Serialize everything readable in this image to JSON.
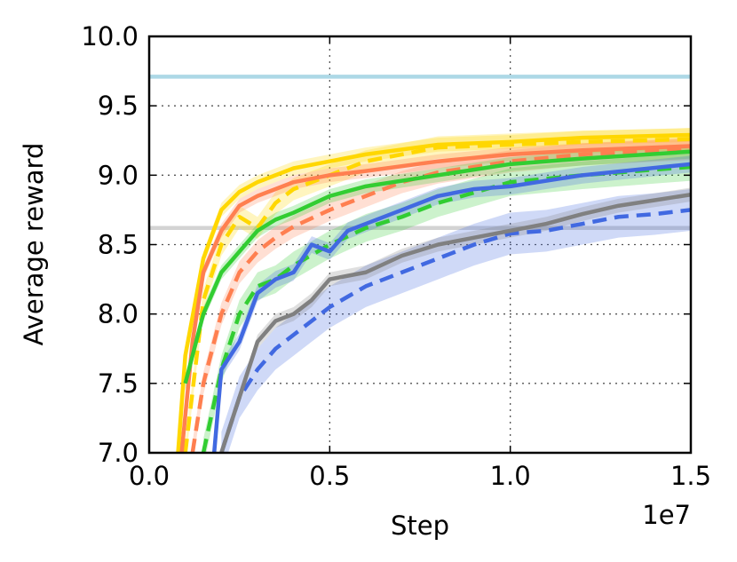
{
  "chart_data": {
    "type": "line",
    "title": "",
    "xlabel": "Step",
    "ylabel": "Average reward",
    "x_offset_label": "1e7",
    "xlim": [
      0.0,
      1.5
    ],
    "ylim": [
      7.0,
      10.0
    ],
    "x_ticks": [
      "0.0",
      "0.5",
      "1.0",
      "1.5"
    ],
    "y_ticks": [
      "7.0",
      "7.5",
      "8.0",
      "8.5",
      "9.0",
      "9.5",
      "10.0"
    ],
    "grid": true,
    "legend": "none",
    "reference_lines": [
      {
        "y": 9.71,
        "color": "#add8e6"
      },
      {
        "y": 8.62,
        "color": "#d3d3d3"
      }
    ],
    "series": [
      {
        "color": "#ffd700",
        "style": "solid",
        "x": [
          0.08,
          0.1,
          0.15,
          0.2,
          0.25,
          0.3,
          0.4,
          0.5,
          0.6,
          0.8,
          1.0,
          1.2,
          1.5
        ],
        "y": [
          7.0,
          7.7,
          8.4,
          8.75,
          8.88,
          8.95,
          9.05,
          9.1,
          9.15,
          9.22,
          9.24,
          9.27,
          9.29
        ],
        "band": 0.05
      },
      {
        "color": "#ffd700",
        "style": "dashed",
        "x": [
          0.1,
          0.15,
          0.2,
          0.25,
          0.3,
          0.35,
          0.4,
          0.5,
          0.6,
          0.8,
          1.0,
          1.2,
          1.5
        ],
        "y": [
          7.0,
          8.1,
          8.5,
          8.7,
          8.62,
          8.8,
          8.9,
          9.0,
          9.1,
          9.2,
          9.22,
          9.24,
          9.26
        ],
        "band": 0.08
      },
      {
        "color": "#ff7f50",
        "style": "solid",
        "x": [
          0.09,
          0.12,
          0.15,
          0.2,
          0.25,
          0.3,
          0.4,
          0.5,
          0.6,
          0.8,
          1.0,
          1.2,
          1.5
        ],
        "y": [
          7.0,
          7.8,
          8.3,
          8.6,
          8.78,
          8.85,
          8.95,
          9.0,
          9.03,
          9.1,
          9.15,
          9.18,
          9.21
        ],
        "band": 0.05
      },
      {
        "color": "#ff7f50",
        "style": "dashed",
        "x": [
          0.12,
          0.15,
          0.2,
          0.25,
          0.3,
          0.35,
          0.4,
          0.5,
          0.6,
          0.7,
          0.8,
          1.0,
          1.2,
          1.5
        ],
        "y": [
          7.0,
          7.5,
          8.0,
          8.3,
          8.45,
          8.55,
          8.63,
          8.75,
          8.85,
          8.95,
          9.02,
          9.1,
          9.15,
          9.19
        ],
        "band": 0.08
      },
      {
        "color": "#32cd32",
        "style": "solid",
        "x": [
          0.1,
          0.15,
          0.2,
          0.25,
          0.3,
          0.35,
          0.4,
          0.5,
          0.6,
          0.8,
          1.0,
          1.2,
          1.5
        ],
        "y": [
          7.5,
          8.0,
          8.3,
          8.45,
          8.6,
          8.68,
          8.73,
          8.85,
          8.92,
          9.0,
          9.08,
          9.12,
          9.17
        ],
        "band": 0.05
      },
      {
        "color": "#32cd32",
        "style": "dashed",
        "x": [
          0.15,
          0.2,
          0.25,
          0.3,
          0.35,
          0.4,
          0.5,
          0.6,
          0.7,
          0.8,
          1.0,
          1.2,
          1.5
        ],
        "y": [
          7.0,
          7.6,
          8.0,
          8.2,
          8.25,
          8.35,
          8.5,
          8.62,
          8.7,
          8.8,
          8.95,
          9.0,
          9.06
        ],
        "band": 0.1
      },
      {
        "color": "#4169e1",
        "style": "solid",
        "x": [
          0.18,
          0.2,
          0.25,
          0.3,
          0.35,
          0.4,
          0.45,
          0.5,
          0.55,
          0.6,
          0.7,
          0.8,
          0.9,
          1.0,
          1.2,
          1.5
        ],
        "y": [
          7.0,
          7.6,
          7.8,
          8.15,
          8.25,
          8.3,
          8.5,
          8.45,
          8.6,
          8.65,
          8.75,
          8.85,
          8.9,
          8.92,
          9.0,
          9.08
        ],
        "band": 0.06
      },
      {
        "color": "#4169e1",
        "style": "dashed",
        "x": [
          0.2,
          0.25,
          0.3,
          0.35,
          0.4,
          0.45,
          0.5,
          0.6,
          0.7,
          0.8,
          0.9,
          1.0,
          1.1,
          1.2,
          1.3,
          1.4,
          1.5
        ],
        "y": [
          7.0,
          7.4,
          7.6,
          7.75,
          7.85,
          7.95,
          8.05,
          8.2,
          8.3,
          8.4,
          8.5,
          8.58,
          8.6,
          8.65,
          8.7,
          8.72,
          8.75
        ],
        "band": 0.15
      },
      {
        "color": "#808080",
        "style": "solid",
        "x": [
          0.2,
          0.25,
          0.3,
          0.35,
          0.4,
          0.45,
          0.5,
          0.6,
          0.7,
          0.8,
          0.9,
          1.0,
          1.1,
          1.2,
          1.3,
          1.4,
          1.5
        ],
        "y": [
          7.0,
          7.4,
          7.8,
          7.95,
          8.0,
          8.1,
          8.25,
          8.3,
          8.42,
          8.5,
          8.55,
          8.6,
          8.65,
          8.72,
          8.78,
          8.82,
          8.86
        ],
        "band": 0.05
      }
    ]
  }
}
